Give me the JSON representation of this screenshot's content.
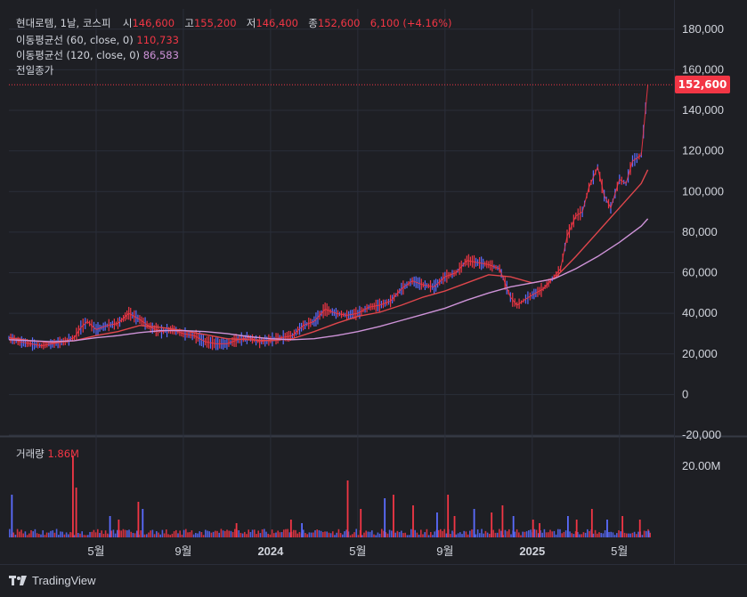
{
  "header": {
    "symbol": "현대로템, 1날, 코스피",
    "open_label": "시",
    "open": "146,600",
    "high_label": "고",
    "high": "155,200",
    "low_label": "저",
    "low": "146,400",
    "close_label": "종",
    "close": "152,600",
    "change": "6,100 (+4.16%)"
  },
  "indicators": {
    "ma60_label": "이동평균선 (60, close, 0)",
    "ma60_value": "110,733",
    "ma120_label": "이동평균선 (120, close, 0)",
    "ma120_value": "86,583",
    "prev_close_label": "전일종가"
  },
  "volume_pane": {
    "label": "거래량",
    "value": "1.86M",
    "axis_tick": "20.00M"
  },
  "price_tag": "152,600",
  "footer": {
    "brand": "TradingView",
    "logo_icon": "tradingview-logo-icon"
  },
  "colors": {
    "up": "#f23645",
    "down": "#5b6cff",
    "ma60": "#e0464c",
    "ma120": "#ce93d8",
    "background": "#1e1f24",
    "grid": "#2a2e39"
  },
  "chart_data": {
    "type": "line",
    "title": "",
    "xlabel": "",
    "ylabel": "",
    "ylim": [
      -20000,
      190000
    ],
    "y_ticks": [
      "180,000",
      "160,000",
      "140,000",
      "120,000",
      "100,000",
      "80,000",
      "60,000",
      "40,000",
      "20,000",
      "0",
      "-20,000"
    ],
    "x_ticks": [
      "5월",
      "9월",
      "2024",
      "5월",
      "9월",
      "2025",
      "5월"
    ],
    "x_tick_positions": [
      4,
      8,
      12,
      16,
      20,
      24,
      28
    ],
    "x_range": [
      0,
      30.5
    ],
    "series": [
      {
        "name": "",
        "x": [
          0,
          0.5,
          1,
          1.5,
          2,
          2.5,
          3,
          3.3,
          3.6,
          4,
          4.5,
          5,
          5.5,
          6,
          6.5,
          7,
          7.5,
          8,
          8.5,
          9,
          9.5,
          10,
          10.5,
          11,
          11.5,
          12,
          12.5,
          13,
          13.5,
          14,
          14.5,
          15,
          15.5,
          16,
          16.5,
          17,
          17.5,
          18,
          18.5,
          19,
          19.5,
          20,
          20.5,
          21,
          21.5,
          22,
          22.5,
          23,
          23.3,
          23.7,
          24,
          24.5,
          25,
          25.3,
          25.6,
          26,
          26.3,
          26.6,
          27,
          27.3,
          27.6,
          28,
          28.3,
          28.6,
          29,
          29.3
        ],
        "values": [
          28000,
          26000,
          25000,
          24000,
          25000,
          26000,
          28000,
          33000,
          36000,
          32000,
          34000,
          35000,
          40000,
          37000,
          33000,
          31000,
          32000,
          30000,
          29000,
          26000,
          25000,
          25000,
          27000,
          28000,
          26000,
          27000,
          28000,
          29000,
          34000,
          36000,
          42000,
          40000,
          39000,
          40000,
          43000,
          44000,
          46000,
          52000,
          56000,
          54000,
          53000,
          58000,
          60000,
          66000,
          65000,
          64000,
          62000,
          48000,
          44000,
          47000,
          49000,
          52000,
          58000,
          62000,
          78000,
          88000,
          90000,
          102000,
          112000,
          98000,
          92000,
          106000,
          104000,
          115000,
          118000,
          152600
        ]
      },
      {
        "name": "",
        "x": [
          0,
          1,
          2,
          3,
          4,
          5,
          6,
          7,
          8,
          9,
          10,
          11,
          12,
          13,
          14,
          15,
          16,
          17,
          18,
          19,
          20,
          21,
          22,
          23,
          24,
          25,
          26,
          27,
          28,
          29,
          29.3
        ],
        "values": [
          28000,
          26500,
          25500,
          26500,
          29000,
          31000,
          34000,
          33000,
          31500,
          29500,
          27500,
          27000,
          26500,
          27500,
          31000,
          35000,
          38500,
          40500,
          44000,
          48000,
          51000,
          55000,
          59000,
          58000,
          55000,
          57000,
          68000,
          80000,
          92000,
          104000,
          110733
        ]
      },
      {
        "name": "",
        "x": [
          0,
          1,
          2,
          3,
          4,
          5,
          6,
          7,
          8,
          9,
          10,
          11,
          12,
          13,
          14,
          15,
          16,
          17,
          18,
          19,
          20,
          21,
          22,
          23,
          24,
          25,
          26,
          27,
          28,
          29,
          29.3
        ],
        "values": [
          27000,
          26500,
          26000,
          26500,
          28000,
          29000,
          30500,
          31500,
          31500,
          31000,
          30000,
          28500,
          27500,
          27000,
          27500,
          29000,
          31000,
          33500,
          36500,
          39500,
          42500,
          46500,
          50000,
          53000,
          55000,
          57000,
          62000,
          68000,
          75000,
          83000,
          86583
        ]
      }
    ],
    "volume": {
      "ylim": [
        0,
        28000000
      ],
      "spike_x": [
        0.1,
        2.9,
        3.05,
        4.6,
        5.0,
        5.9,
        6.1,
        10.4,
        12.9,
        13.4,
        15.5,
        16.1,
        17.2,
        17.6,
        18.5,
        19.6,
        20.1,
        20.4,
        21.3,
        22.1,
        22.6,
        23.1,
        24.0,
        24.3,
        25.6,
        26.0,
        26.7,
        27.4,
        28.1,
        28.9,
        29.3
      ],
      "spike_values": [
        12000000,
        23000000,
        14000000,
        6000000,
        5000000,
        10000000,
        8000000,
        4000000,
        5000000,
        4000000,
        16000000,
        8000000,
        11000000,
        12000000,
        9000000,
        7000000,
        12000000,
        6000000,
        8000000,
        7000000,
        9000000,
        6000000,
        5000000,
        4000000,
        6000000,
        5000000,
        8000000,
        5000000,
        6000000,
        5000000,
        1860000
      ]
    },
    "grid": true,
    "legend": "top-left"
  }
}
